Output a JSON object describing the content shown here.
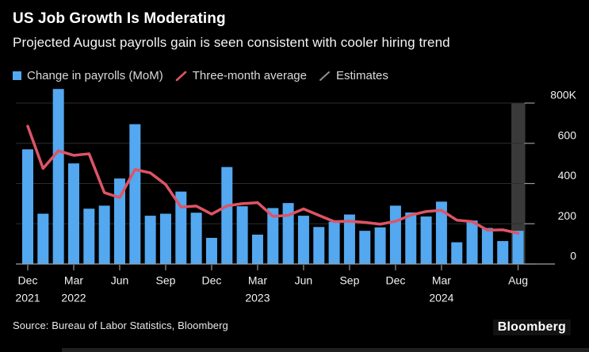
{
  "header": {
    "title": "US Job Growth Is Moderating",
    "subtitle": "Projected August payrolls gain is seen consistent with cooler hiring trend"
  },
  "legend": {
    "items": [
      {
        "label": "Change in payrolls (MoM)",
        "swatch": "square",
        "color": "#53A8F0"
      },
      {
        "label": "Three-month average",
        "swatch": "slash",
        "color": "#DE5465"
      },
      {
        "label": "Estimates",
        "swatch": "slash",
        "color": "#8F8F8F"
      }
    ]
  },
  "footer": {
    "source": "Source: Bureau of Labor Statistics, Bloomberg",
    "brand": "Bloomberg"
  },
  "chart_data": {
    "type": "bar",
    "title": "US Job Growth Is Moderating",
    "subtitle": "Projected August payrolls gain is seen consistent with cooler hiring trend",
    "unit": "thousands of jobs (K)",
    "ylim": [
      0,
      800
    ],
    "grid": "horizontal",
    "legend_position": "top",
    "categories": [
      "Dec 2021",
      "Jan 2022",
      "Feb 2022",
      "Mar 2022",
      "Apr 2022",
      "May 2022",
      "Jun 2022",
      "Jul 2022",
      "Aug 2022",
      "Sep 2022",
      "Oct 2022",
      "Nov 2022",
      "Dec 2022",
      "Jan 2023",
      "Feb 2023",
      "Mar 2023",
      "Apr 2023",
      "May 2023",
      "Jun 2023",
      "Jul 2023",
      "Aug 2023",
      "Sep 2023",
      "Oct 2023",
      "Nov 2023",
      "Dec 2023",
      "Jan 2024",
      "Feb 2024",
      "Mar 2024",
      "Apr 2024",
      "May 2024",
      "Jun 2024",
      "Jul 2024",
      "Aug 2024"
    ],
    "series": [
      {
        "name": "Change in payrolls (MoM)",
        "type": "bar",
        "color": "#53A8F0",
        "values": [
          570,
          250,
          870,
          500,
          275,
          290,
          425,
          695,
          240,
          250,
          360,
          255,
          130,
          482,
          287,
          146,
          278,
          303,
          240,
          184,
          210,
          246,
          165,
          182,
          290,
          256,
          236,
          310,
          108,
          216,
          179,
          114,
          165
        ]
      },
      {
        "name": "Three-month average",
        "type": "line",
        "color": "#DE5465",
        "values": [
          685,
          475,
          563,
          540,
          548,
          355,
          330,
          470,
          453,
          395,
          283,
          288,
          248,
          289,
          300,
          305,
          237,
          242,
          274,
          242,
          211,
          213,
          207,
          198,
          212,
          243,
          261,
          267,
          218,
          211,
          168,
          170,
          153
        ]
      },
      {
        "name": "Estimates",
        "type": "highlight-band",
        "color": "#3A3A3A",
        "month_index": 32,
        "value_range": [
          0,
          800
        ]
      }
    ],
    "y_ticks": [
      {
        "value": 800,
        "label": "800K"
      },
      {
        "value": 600,
        "label": "600"
      },
      {
        "value": 400,
        "label": "400"
      },
      {
        "value": 200,
        "label": "200"
      },
      {
        "value": 0,
        "label": "0"
      }
    ],
    "x_ticks": [
      {
        "index": 0,
        "month": "Dec",
        "year": "2021"
      },
      {
        "index": 3,
        "month": "Mar",
        "year": "2022"
      },
      {
        "index": 6,
        "month": "Jun"
      },
      {
        "index": 9,
        "month": "Sep"
      },
      {
        "index": 12,
        "month": "Dec"
      },
      {
        "index": 15,
        "month": "Mar",
        "year": "2023"
      },
      {
        "index": 18,
        "month": "Jun"
      },
      {
        "index": 21,
        "month": "Sep"
      },
      {
        "index": 24,
        "month": "Dec"
      },
      {
        "index": 27,
        "month": "Mar",
        "year": "2024"
      },
      {
        "index": 32,
        "month": "Aug"
      }
    ]
  }
}
